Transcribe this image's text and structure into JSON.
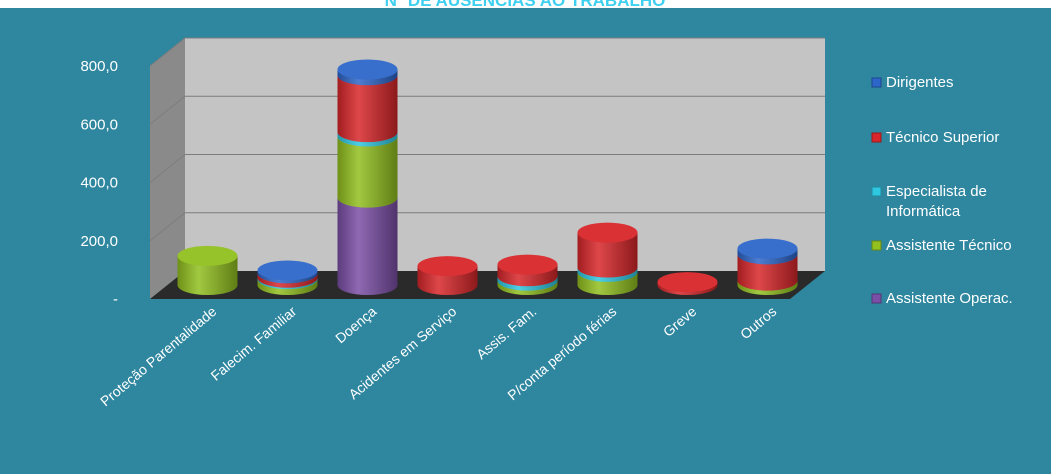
{
  "chart_data": {
    "type": "bar",
    "title": "Nº DE AUSÊNCIAS AO TRABALHO",
    "xlabel": "",
    "ylabel": "",
    "ylim": [
      0,
      800
    ],
    "y_ticks": [
      "-",
      "200,0",
      "400,0",
      "600,0",
      "800,0"
    ],
    "y_tick_values": [
      0,
      200,
      400,
      600,
      800
    ],
    "stacked": true,
    "grid": true,
    "legend_position": "right",
    "categories": [
      "Proteção Parentalidade",
      "Falecim. Familiar",
      "Doença",
      "Acidentes  em Serviço",
      "Assis. Fam.",
      "P/conta período férias",
      "Greve",
      "Outros"
    ],
    "series": [
      {
        "name": "Assistente Operac.",
        "color": "#7b4fa6",
        "values": [
          0,
          0,
          300,
          0,
          0,
          0,
          0,
          0
        ]
      },
      {
        "name": "Assistente Técnico",
        "color": "#92c01f",
        "values": [
          100,
          20,
          210,
          0,
          15,
          45,
          0,
          15
        ]
      },
      {
        "name": "Especialista de Informática",
        "color": "#2fc6e0",
        "values": [
          0,
          5,
          15,
          0,
          15,
          15,
          0,
          0
        ]
      },
      {
        "name": "Técnico Superior",
        "color": "#d8262a",
        "values": [
          0,
          15,
          195,
          65,
          40,
          120,
          10,
          90
        ]
      },
      {
        "name": "Dirigentes",
        "color": "#2d66c9",
        "values": [
          0,
          10,
          20,
          0,
          0,
          0,
          0,
          20
        ]
      }
    ],
    "legend_order": [
      "Dirigentes",
      "Técnico Superior",
      "Especialista de Informática",
      "Assistente Técnico",
      "Assistente Operac."
    ]
  },
  "colors": {
    "background": "#2e869f",
    "plot_wall": "#c4c4c4",
    "side_wall": "#8a8a8a",
    "floor": "#2a2a2a",
    "gridline": "#7d7d7d",
    "text": "#ffffff",
    "title": "#3fd0f0"
  }
}
